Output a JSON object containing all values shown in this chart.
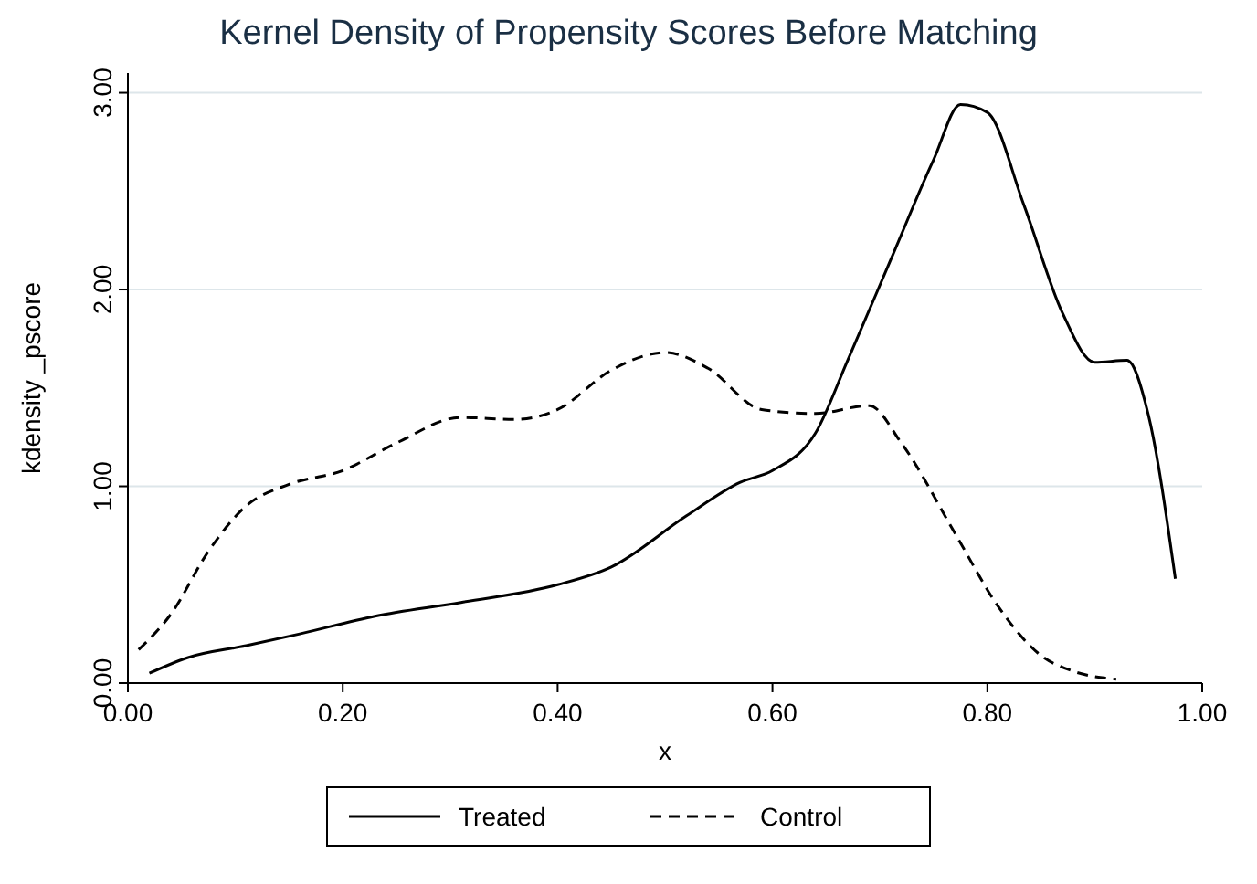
{
  "chart_data": {
    "type": "line",
    "title": "Kernel Density of Propensity Scores Before Matching",
    "xlabel": "x",
    "ylabel": "kdensity _pscore",
    "xlim": [
      0,
      1
    ],
    "xticks": [
      {
        "value": 0,
        "label": "0.00"
      },
      {
        "value": 0.2,
        "label": "0.20"
      },
      {
        "value": 0.4,
        "label": "0.40"
      },
      {
        "value": 0.6,
        "label": "0.60"
      },
      {
        "value": 0.8,
        "label": "0.80"
      },
      {
        "value": 1,
        "label": "1.00"
      }
    ],
    "ylim": [
      0,
      3.1
    ],
    "yticks": [
      {
        "value": 0,
        "label": "0.00"
      },
      {
        "value": 1,
        "label": "1.00"
      },
      {
        "value": 2,
        "label": "2.00"
      },
      {
        "value": 3,
        "label": "3.00"
      }
    ],
    "grid": "y",
    "legend": "bottom",
    "marker": "none",
    "series": [
      {
        "name": "Treated",
        "color": "#000000",
        "line_style": "solid",
        "x": [
          0.02,
          0.056,
          0.11,
          0.16,
          0.23,
          0.31,
          0.4,
          0.45,
          0.52,
          0.57,
          0.6,
          0.64,
          0.67,
          0.71,
          0.75,
          0.775,
          0.8,
          0.834,
          0.87,
          0.9,
          0.93,
          0.95,
          0.975
        ],
        "values": [
          0.05,
          0.13,
          0.19,
          0.25,
          0.34,
          0.41,
          0.5,
          0.59,
          0.85,
          1.02,
          1.08,
          1.27,
          1.64,
          2.15,
          2.66,
          2.94,
          2.9,
          2.43,
          1.88,
          1.63,
          1.64,
          1.36,
          0.53
        ]
      },
      {
        "name": "Control",
        "color": "#000000",
        "line_style": "dashed",
        "x": [
          0.01,
          0.04,
          0.075,
          0.11,
          0.15,
          0.2,
          0.25,
          0.31,
          0.36,
          0.4,
          0.45,
          0.5,
          0.54,
          0.59,
          0.64,
          0.69,
          0.72,
          0.77,
          0.81,
          0.85,
          0.88,
          0.92
        ],
        "values": [
          0.17,
          0.35,
          0.67,
          0.9,
          1.01,
          1.08,
          1.22,
          1.35,
          1.34,
          1.39,
          1.59,
          1.68,
          1.6,
          1.39,
          1.37,
          1.41,
          1.22,
          0.76,
          0.39,
          0.14,
          0.06,
          0.02
        ]
      }
    ]
  }
}
